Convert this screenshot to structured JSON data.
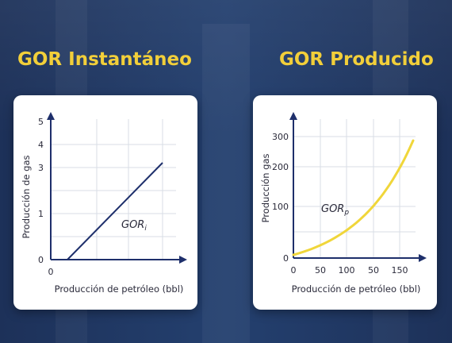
{
  "chart_data": [
    {
      "type": "line",
      "title": "GOR Instantáneo",
      "xlabel": "Producción de petróleo (bbl)",
      "ylabel": "Producción de gas",
      "x_ticks": [
        "0"
      ],
      "y_ticks": [
        "0",
        "1",
        "3",
        "4",
        "5"
      ],
      "ylim": [
        0,
        5
      ],
      "grid": true,
      "series": [
        {
          "name": "GORi",
          "name_main": "GOR",
          "name_sub": "i",
          "color": "#1e2f6b",
          "shape": "linear"
        }
      ]
    },
    {
      "type": "line",
      "title": "GOR Producido",
      "xlabel": "Producción de petróleo (bbl)",
      "ylabel": "Producción gas",
      "x_ticks": [
        "0",
        "50",
        "100",
        "50",
        "150"
      ],
      "y_ticks": [
        "0",
        "100",
        "200",
        "300"
      ],
      "ylim": [
        0,
        300
      ],
      "grid": true,
      "series": [
        {
          "name": "GORp",
          "name_main": "GOR",
          "name_sub": "p",
          "color": "#f0d63a",
          "shape": "exponential"
        }
      ]
    }
  ],
  "colors": {
    "background": "#1f3560",
    "title": "#f2cf3a",
    "axis": "#1e2f6b",
    "grid": "#d8dde6"
  }
}
